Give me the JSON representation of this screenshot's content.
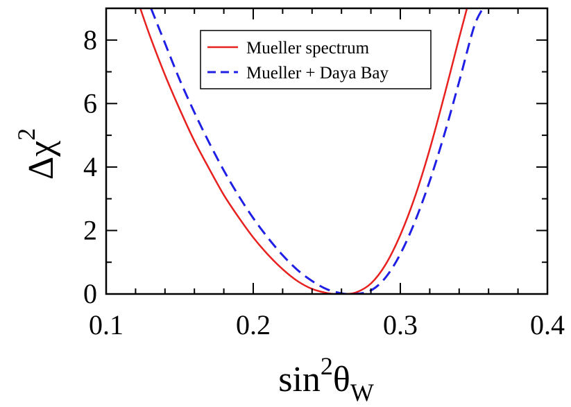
{
  "chart_data": {
    "type": "line",
    "title": "",
    "xlabel": {
      "main": "sin",
      "sup": "2",
      "symbol": "θ",
      "sub": "W"
    },
    "ylabel": {
      "main": "Δχ",
      "sup": "2"
    },
    "xlim": [
      0.1,
      0.4
    ],
    "ylim": [
      0,
      9
    ],
    "x_ticks": [
      "0.1",
      "0.2",
      "0.3",
      "0.4"
    ],
    "y_ticks": [
      "0",
      "2",
      "4",
      "6",
      "8"
    ],
    "grid": false,
    "legend": "top-center",
    "series": [
      {
        "name": "Mueller spectrum",
        "color": "#e8201e",
        "dash": "solid",
        "x": [
          0.1232,
          0.13,
          0.14,
          0.15,
          0.16,
          0.17,
          0.18,
          0.19,
          0.2,
          0.21,
          0.22,
          0.23,
          0.24,
          0.25,
          0.255,
          0.262,
          0.27,
          0.28,
          0.29,
          0.3,
          0.31,
          0.32,
          0.33,
          0.34,
          0.3453
        ],
        "y": [
          9.0,
          8.1,
          6.9,
          5.82,
          4.82,
          3.95,
          3.12,
          2.42,
          1.78,
          1.24,
          0.78,
          0.41,
          0.16,
          0.03,
          0.0,
          0.0,
          0.05,
          0.33,
          0.93,
          1.86,
          3.07,
          4.56,
          6.27,
          8.07,
          9.0
        ]
      },
      {
        "name": "Mueller + Daya Bay",
        "color": "#1f1fe6",
        "dash": "dashed",
        "x": [
          0.1305,
          0.14,
          0.15,
          0.16,
          0.17,
          0.18,
          0.19,
          0.2,
          0.21,
          0.22,
          0.23,
          0.24,
          0.25,
          0.26,
          0.265,
          0.27,
          0.28,
          0.29,
          0.3,
          0.31,
          0.32,
          0.33,
          0.34,
          0.35,
          0.3561
        ],
        "y": [
          9.0,
          7.9,
          6.75,
          5.72,
          4.77,
          3.89,
          3.1,
          2.39,
          1.77,
          1.22,
          0.76,
          0.41,
          0.15,
          0.02,
          0.0,
          0.0,
          0.11,
          0.52,
          1.26,
          2.29,
          3.56,
          5.04,
          6.69,
          8.4,
          9.0
        ]
      }
    ]
  }
}
